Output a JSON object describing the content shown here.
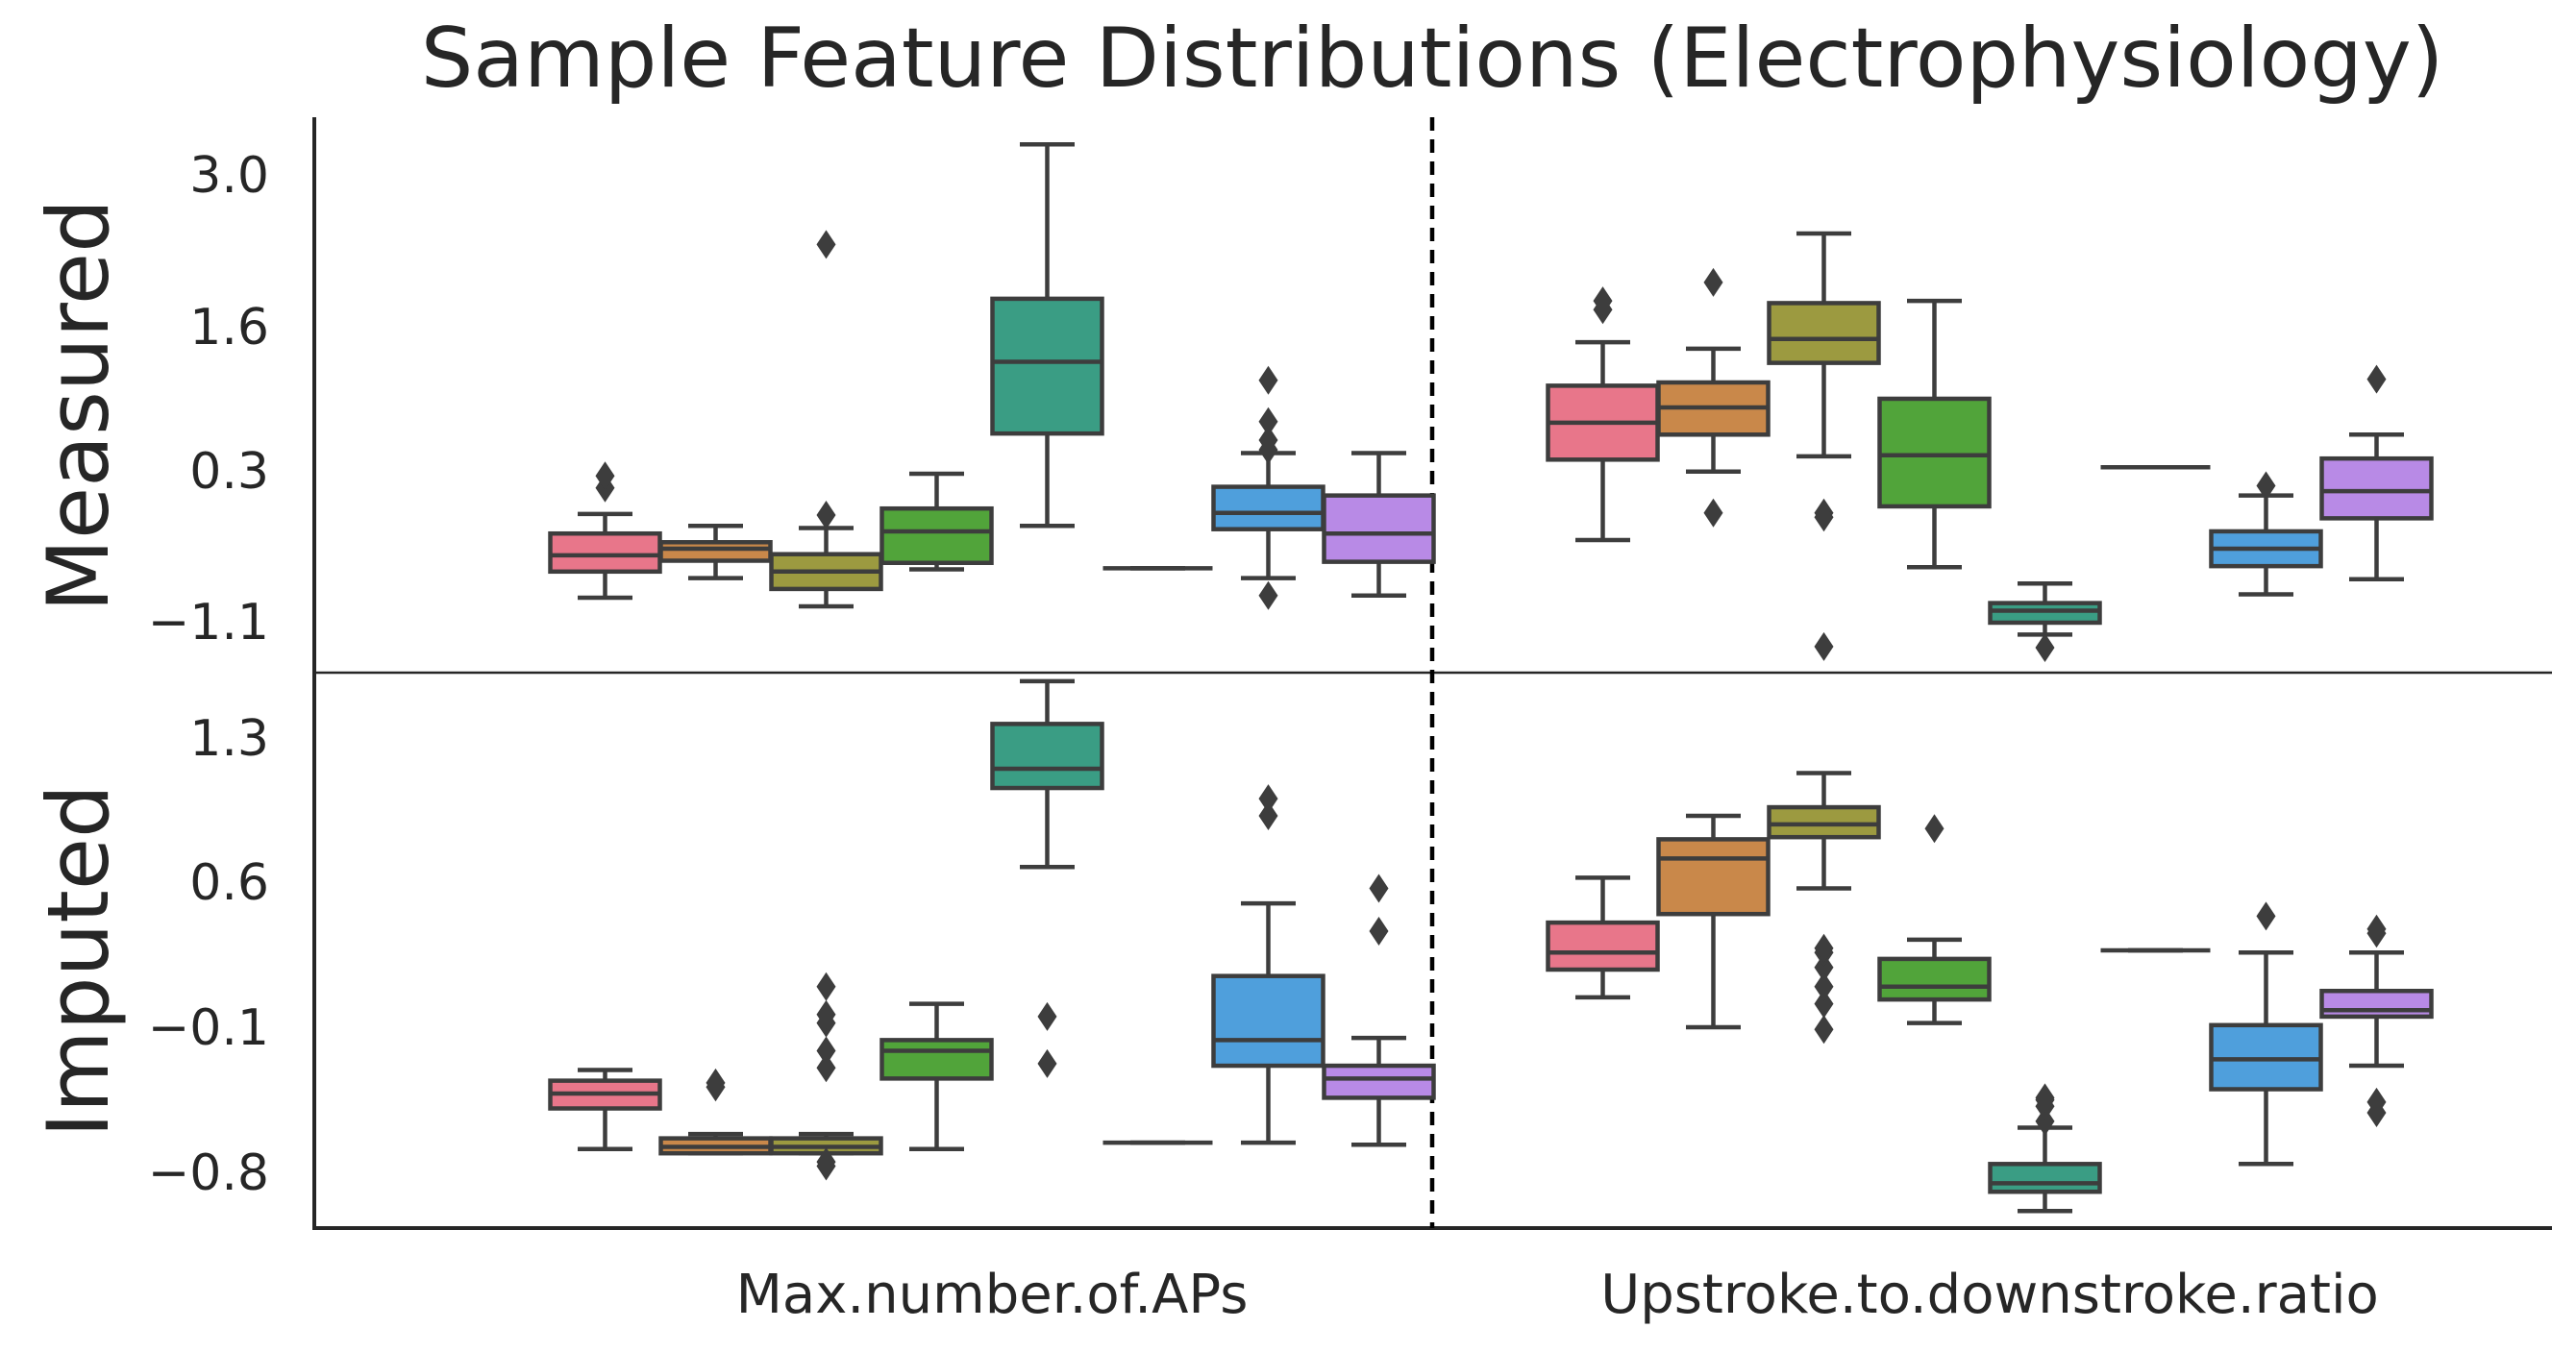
{
  "chart_data": {
    "type": "box",
    "title": "Sample Feature Distributions (Electrophysiology)",
    "categories": [
      "Max.number.of.APs",
      "Upstroke.to.downstroke.ratio"
    ],
    "group_colors": [
      "#e8768a",
      "#c9884a",
      "#9c9a40",
      "#51a43a",
      "#3a9d84",
      "#3b9bc4",
      "#4f9fdc",
      "#b88ae6"
    ],
    "grid": false,
    "legend": "none",
    "panels": [
      {
        "row_label": "Measured",
        "yticks": [
          "3.0",
          "1.6",
          "0.3",
          "−1.1"
        ],
        "ytick_values": [
          3.0,
          1.6,
          0.3,
          -1.1
        ],
        "ylim": [
          -1.56,
          3.55
        ],
        "groups": [
          [
            {
              "q1": -0.63,
              "med": -0.48,
              "q3": -0.28,
              "whislo": -0.87,
              "whishi": -0.1,
              "fliers": [
                0.14,
                0.25
              ]
            },
            {
              "q1": -0.53,
              "med": -0.42,
              "q3": -0.36,
              "whislo": -0.69,
              "whishi": -0.21,
              "fliers": []
            },
            {
              "q1": -0.79,
              "med": -0.63,
              "q3": -0.47,
              "whislo": -0.95,
              "whishi": -0.23,
              "fliers": [
                -0.11,
                2.38
              ]
            },
            {
              "q1": -0.55,
              "med": -0.26,
              "q3": -0.05,
              "whislo": -0.61,
              "whishi": 0.27,
              "fliers": []
            },
            {
              "q1": 0.64,
              "med": 1.3,
              "q3": 1.88,
              "whislo": -0.21,
              "whishi": 3.3,
              "fliers": []
            },
            {
              "q1": -0.6,
              "med": -0.6,
              "q3": -0.6,
              "whislo": -0.6,
              "whishi": -0.6,
              "fliers": []
            },
            {
              "q1": -0.24,
              "med": -0.09,
              "q3": 0.15,
              "whislo": -0.69,
              "whishi": 0.46,
              "fliers": [
                -0.85,
                0.49,
                0.58,
                0.75,
                1.13
              ]
            },
            {
              "q1": -0.54,
              "med": -0.28,
              "q3": 0.07,
              "whislo": -0.85,
              "whishi": 0.46,
              "fliers": []
            }
          ],
          [
            {
              "q1": 0.4,
              "med": 0.74,
              "q3": 1.08,
              "whislo": -0.34,
              "whishi": 1.48,
              "fliers": [
                1.78,
                1.86
              ]
            },
            {
              "q1": 0.63,
              "med": 0.88,
              "q3": 1.11,
              "whislo": 0.29,
              "whishi": 1.42,
              "fliers": [
                -0.09,
                2.03
              ]
            },
            {
              "q1": 1.29,
              "med": 1.51,
              "q3": 1.84,
              "whislo": 0.43,
              "whishi": 2.48,
              "fliers": [
                -0.09,
                -0.13,
                -1.32
              ]
            },
            {
              "q1": -0.03,
              "med": 0.44,
              "q3": 0.96,
              "whislo": -0.59,
              "whishi": 1.86,
              "fliers": []
            },
            {
              "q1": -1.1,
              "med": -0.99,
              "q3": -0.92,
              "whislo": -1.21,
              "whishi": -0.74,
              "fliers": [
                -1.33
              ]
            },
            {
              "q1": 0.33,
              "med": 0.33,
              "q3": 0.33,
              "whislo": 0.33,
              "whishi": 0.33,
              "fliers": []
            },
            {
              "q1": -0.58,
              "med": -0.42,
              "q3": -0.26,
              "whislo": -0.84,
              "whishi": 0.07,
              "fliers": [
                0.16
              ]
            },
            {
              "q1": -0.14,
              "med": 0.11,
              "q3": 0.41,
              "whislo": -0.7,
              "whishi": 0.63,
              "fliers": [
                1.14
              ]
            }
          ]
        ]
      },
      {
        "row_label": "Imputed",
        "yticks": [
          "1.3",
          "0.6",
          "−0.1",
          "−0.8"
        ],
        "ytick_values": [
          1.3,
          0.6,
          -0.1,
          -0.8
        ],
        "ylim": [
          -1.09,
          1.51
        ],
        "groups": [
          [
            {
              "q1": -0.53,
              "med": -0.46,
              "q3": -0.4,
              "whislo": -0.72,
              "whishi": -0.35,
              "fliers": []
            },
            {
              "q1": -0.74,
              "med": -0.71,
              "q3": -0.67,
              "whislo": -0.74,
              "whishi": -0.65,
              "fliers": [
                -0.41,
                -0.43
              ]
            },
            {
              "q1": -0.74,
              "med": -0.71,
              "q3": -0.67,
              "whislo": -0.74,
              "whishi": -0.65,
              "fliers": [
                -0.34,
                -0.26,
                -0.13,
                -0.09,
                0.04,
                -0.8,
                -0.78
              ]
            },
            {
              "q1": -0.39,
              "med": -0.26,
              "q3": -0.21,
              "whislo": -0.72,
              "whishi": -0.04,
              "fliers": []
            },
            {
              "q1": 0.97,
              "med": 1.06,
              "q3": 1.27,
              "whislo": 0.6,
              "whishi": 1.47,
              "fliers": [
                -0.1,
                -0.32
              ]
            },
            {
              "q1": -0.69,
              "med": -0.69,
              "q3": -0.69,
              "whislo": -0.69,
              "whishi": -0.69,
              "fliers": []
            },
            {
              "q1": -0.33,
              "med": -0.21,
              "q3": 0.09,
              "whislo": -0.69,
              "whishi": 0.43,
              "fliers": [
                0.84,
                0.92
              ]
            },
            {
              "q1": -0.48,
              "med": -0.39,
              "q3": -0.33,
              "whislo": -0.7,
              "whishi": -0.2,
              "fliers": [
                0.5,
                0.3
              ]
            }
          ],
          [
            {
              "q1": 0.12,
              "med": 0.2,
              "q3": 0.34,
              "whislo": -0.01,
              "whishi": 0.55,
              "fliers": []
            },
            {
              "q1": 0.38,
              "med": 0.64,
              "q3": 0.73,
              "whislo": -0.15,
              "whishi": 0.84,
              "fliers": []
            },
            {
              "q1": 0.74,
              "med": 0.8,
              "q3": 0.88,
              "whislo": 0.5,
              "whishi": 1.04,
              "fliers": [
                0.13,
                0.2,
                0.22,
                -0.16,
                -0.04,
                0.04
              ]
            },
            {
              "q1": -0.02,
              "med": 0.04,
              "q3": 0.17,
              "whislo": -0.13,
              "whishi": 0.26,
              "fliers": [
                0.78
              ]
            },
            {
              "q1": -0.92,
              "med": -0.88,
              "q3": -0.79,
              "whislo": -1.01,
              "whishi": -0.62,
              "fliers": [
                -0.49,
                -0.59,
                -0.52,
                -0.48
              ]
            },
            {
              "q1": 0.21,
              "med": 0.21,
              "q3": 0.21,
              "whislo": 0.21,
              "whishi": 0.21,
              "fliers": []
            },
            {
              "q1": -0.44,
              "med": -0.3,
              "q3": -0.14,
              "whislo": -0.79,
              "whishi": 0.2,
              "fliers": [
                0.37
              ]
            },
            {
              "q1": -0.1,
              "med": -0.07,
              "q3": 0.02,
              "whislo": -0.33,
              "whishi": 0.2,
              "fliers": [
                -0.5,
                -0.55,
                0.29,
                0.31
              ]
            }
          ]
        ]
      }
    ]
  }
}
